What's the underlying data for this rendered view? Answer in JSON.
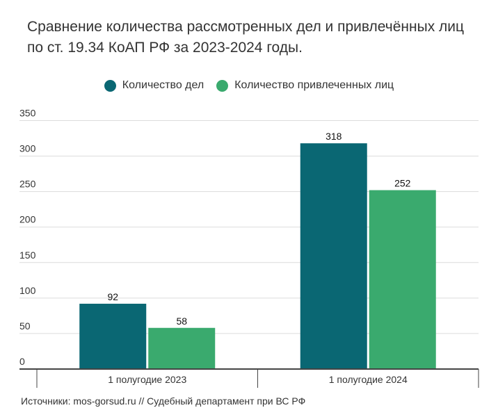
{
  "chart_data": {
    "type": "bar",
    "title": "Сравнение количества рассмотренных дел и привлечённых лиц по ст. 19.34 КоАП РФ за 2023-2024 годы.",
    "categories": [
      "1 полугодие 2023",
      "1 полугодие 2024"
    ],
    "series": [
      {
        "name": "Количество дел",
        "values": [
          92,
          318
        ],
        "color": "#0a6773"
      },
      {
        "name": "Количество привлеченных лиц",
        "values": [
          58,
          252
        ],
        "color": "#3aaa6e"
      }
    ],
    "ylim": [
      0,
      350
    ],
    "yticks": [
      0,
      50,
      100,
      150,
      200,
      250,
      300,
      350
    ],
    "grid": true,
    "legend": "top-center",
    "data_labels": true,
    "source": "Источники: mos-gorsud.ru // Судебный департамент при ВС РФ"
  }
}
